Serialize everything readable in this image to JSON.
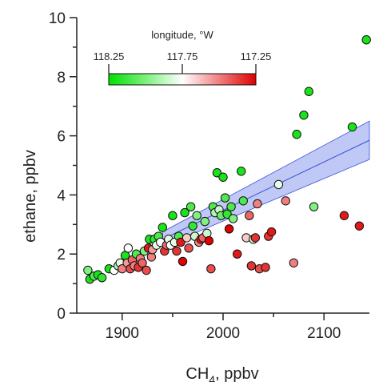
{
  "chart_data": {
    "type": "scatter",
    "xlabel_main": "CH",
    "xlabel_sub": "4",
    "xlabel_rest": ", ppbv",
    "ylabel": "ethane, ppbv",
    "xlim": [
      1855,
      2145
    ],
    "ylim": [
      0,
      10
    ],
    "x_ticks": [
      1900,
      2000,
      2100
    ],
    "x_tick_labels": [
      "1900",
      "2000",
      "2100"
    ],
    "y_ticks": [
      0,
      2,
      4,
      6,
      8,
      10
    ],
    "y_tick_labels": [
      "0",
      "2",
      "4",
      "6",
      "8",
      "10"
    ],
    "colorbar": {
      "title": "longitude, °W",
      "tick_labels": [
        "118.25",
        "117.75",
        "117.25"
      ],
      "range": [
        118.25,
        117.25
      ],
      "colors": [
        "#00e000",
        "#ffffff",
        "#e00000"
      ]
    },
    "fit": {
      "line": [
        [
          1940,
          2.5
        ],
        [
          2145,
          5.85
        ]
      ],
      "upper": [
        [
          1940,
          2.75
        ],
        [
          2145,
          6.5
        ]
      ],
      "lower": [
        [
          1940,
          2.25
        ],
        [
          2145,
          5.2
        ]
      ],
      "band_color": "#c0c8f6",
      "line_color": "#3a52d8"
    },
    "points": [
      [
        1866,
        1.45,
        118.0
      ],
      [
        1868,
        1.15,
        118.2
      ],
      [
        1872,
        1.25,
        118.1
      ],
      [
        1876,
        1.3,
        118.2
      ],
      [
        1880,
        1.2,
        118.15
      ],
      [
        1887,
        1.5,
        118.2
      ],
      [
        1892,
        1.45,
        117.75
      ],
      [
        1896,
        1.6,
        117.9
      ],
      [
        1898,
        1.7,
        117.8
      ],
      [
        1900,
        1.5,
        117.5
      ],
      [
        1903,
        1.95,
        118.2
      ],
      [
        1905,
        1.7,
        117.55
      ],
      [
        1906,
        2.2,
        117.75
      ],
      [
        1908,
        1.5,
        117.4
      ],
      [
        1910,
        1.8,
        117.45
      ],
      [
        1912,
        1.6,
        117.5
      ],
      [
        1914,
        2.0,
        118.1
      ],
      [
        1916,
        1.55,
        117.35
      ],
      [
        1918,
        1.85,
        117.5
      ],
      [
        1920,
        1.7,
        117.45
      ],
      [
        1922,
        2.1,
        118.0
      ],
      [
        1924,
        1.45,
        117.4
      ],
      [
        1926,
        2.2,
        117.3
      ],
      [
        1927,
        2.5,
        118.2
      ],
      [
        1929,
        1.9,
        117.5
      ],
      [
        1930,
        2.15,
        117.55
      ],
      [
        1932,
        2.5,
        118.15
      ],
      [
        1934,
        2.3,
        117.8
      ],
      [
        1936,
        2.6,
        118.1
      ],
      [
        1938,
        2.4,
        117.75
      ],
      [
        1940,
        2.9,
        118.2
      ],
      [
        1942,
        2.1,
        117.35
      ],
      [
        1944,
        2.3,
        117.45
      ],
      [
        1946,
        2.5,
        117.8
      ],
      [
        1948,
        2.3,
        117.75
      ],
      [
        1950,
        3.3,
        118.2
      ],
      [
        1952,
        2.4,
        117.8
      ],
      [
        1954,
        2.1,
        117.35
      ],
      [
        1956,
        2.6,
        118.1
      ],
      [
        1958,
        2.4,
        117.3
      ],
      [
        1960,
        1.75,
        117.25
      ],
      [
        1962,
        3.4,
        118.2
      ],
      [
        1964,
        2.55,
        117.65
      ],
      [
        1966,
        2.2,
        117.4
      ],
      [
        1968,
        3.6,
        118.1
      ],
      [
        1970,
        2.95,
        118.15
      ],
      [
        1972,
        2.6,
        117.85
      ],
      [
        1974,
        3.3,
        118.0
      ],
      [
        1976,
        2.4,
        117.5
      ],
      [
        1978,
        2.5,
        117.3
      ],
      [
        1980,
        2.55,
        117.45
      ],
      [
        1982,
        3.1,
        118.0
      ],
      [
        1984,
        2.7,
        117.85
      ],
      [
        1986,
        2.45,
        117.25
      ],
      [
        1988,
        1.5,
        117.4
      ],
      [
        1990,
        3.6,
        118.1
      ],
      [
        1992,
        3.4,
        117.9
      ],
      [
        1994,
        4.75,
        118.2
      ],
      [
        1996,
        3.5,
        117.85
      ],
      [
        1998,
        3.3,
        118.05
      ],
      [
        2000,
        4.6,
        118.2
      ],
      [
        2002,
        3.9,
        118.1
      ],
      [
        2004,
        3.35,
        118.15
      ],
      [
        2006,
        2.85,
        117.25
      ],
      [
        2008,
        3.6,
        118.1
      ],
      [
        2010,
        3.2,
        118.0
      ],
      [
        2014,
        2.0,
        117.3
      ],
      [
        2018,
        4.8,
        118.2
      ],
      [
        2020,
        3.8,
        118.1
      ],
      [
        2023,
        2.55,
        117.65
      ],
      [
        2026,
        3.3,
        117.45
      ],
      [
        2028,
        1.6,
        117.35
      ],
      [
        2030,
        2.5,
        117.85
      ],
      [
        2032,
        2.55,
        117.35
      ],
      [
        2034,
        3.7,
        117.5
      ],
      [
        2036,
        1.5,
        117.4
      ],
      [
        2042,
        1.55,
        117.35
      ],
      [
        2045,
        2.6,
        117.35
      ],
      [
        2048,
        2.75,
        117.3
      ],
      [
        2055,
        4.35,
        117.8
      ],
      [
        2062,
        3.8,
        117.5
      ],
      [
        2070,
        1.7,
        117.5
      ],
      [
        2073,
        6.05,
        118.2
      ],
      [
        2080,
        6.7,
        118.2
      ],
      [
        2085,
        7.5,
        118.2
      ],
      [
        2090,
        3.6,
        118.0
      ],
      [
        2120,
        3.3,
        117.3
      ],
      [
        2128,
        6.3,
        118.2
      ],
      [
        2135,
        2.95,
        117.3
      ],
      [
        2142,
        9.25,
        118.2
      ]
    ]
  }
}
